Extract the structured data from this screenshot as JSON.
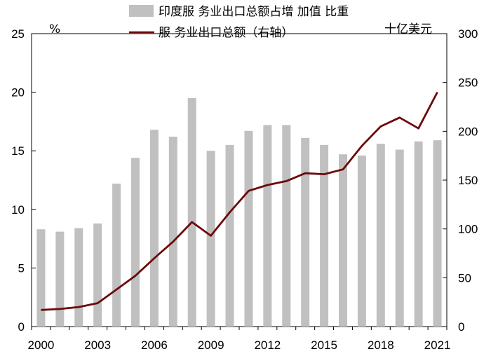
{
  "chart_data": {
    "type": "bar+line",
    "x": [
      2000,
      2001,
      2002,
      2003,
      2004,
      2005,
      2006,
      2007,
      2008,
      2009,
      2010,
      2011,
      2012,
      2013,
      2014,
      2015,
      2016,
      2017,
      2018,
      2019,
      2020,
      2021
    ],
    "x_tick_labels": [
      "2000",
      "2003",
      "2006",
      "2009",
      "2012",
      "2015",
      "2018",
      "2021"
    ],
    "series": [
      {
        "name": "印度服 务业出口总额占增 加值 比重",
        "type": "bar",
        "axis": "left",
        "color": "#c0c0c0",
        "values": [
          8.3,
          8.1,
          8.4,
          8.8,
          12.2,
          14.4,
          16.8,
          16.2,
          19.5,
          15.0,
          15.5,
          16.7,
          17.2,
          17.2,
          16.1,
          15.5,
          14.7,
          14.6,
          15.6,
          15.1,
          15.8,
          15.9
        ]
      },
      {
        "name": "服 务业出口总额（右轴）",
        "type": "line",
        "axis": "right",
        "color": "#6b0a0a",
        "values": [
          17,
          18,
          20,
          24,
          38,
          52,
          70,
          87,
          107,
          93,
          117,
          139,
          145,
          149,
          157,
          156,
          161,
          185,
          205,
          214,
          203,
          240
        ]
      }
    ],
    "y_left": {
      "label": "%",
      "range": [
        0,
        25
      ],
      "ticks": [
        "0",
        "5",
        "10",
        "15",
        "20",
        "25"
      ]
    },
    "y_right": {
      "label": "十亿美元",
      "range": [
        0,
        300
      ],
      "ticks": [
        "0",
        "50",
        "100",
        "150",
        "200",
        "250",
        "300"
      ]
    },
    "legend_position": "top-center"
  }
}
